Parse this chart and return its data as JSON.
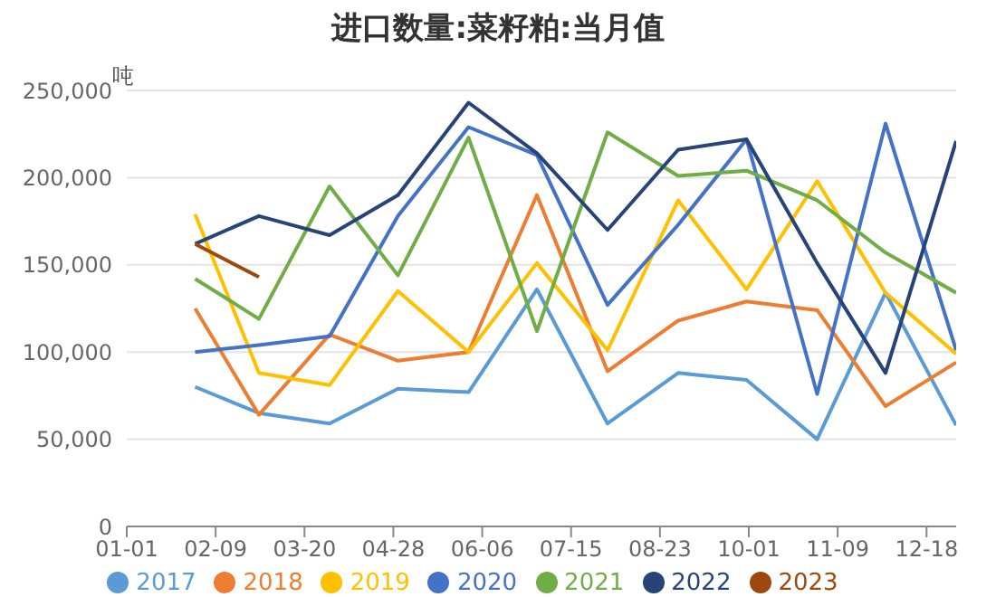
{
  "chart_data": {
    "type": "line",
    "title": "进口数量:菜籽粕:当月值",
    "ylabel": "吨",
    "x": [
      "--01-31",
      "--02-28",
      "--03-31",
      "--04-30",
      "--05-31",
      "--06-30",
      "--07-31",
      "--08-31",
      "--09-30",
      "--10-31",
      "--11-30",
      "--12-31"
    ],
    "xlim": [
      "--01-01",
      "--12-31"
    ],
    "xticks": [
      {
        "value": "--01-01",
        "label": "01-01"
      },
      {
        "value": "--02-09",
        "label": "02-09"
      },
      {
        "value": "--03-20",
        "label": "03-20"
      },
      {
        "value": "--04-28",
        "label": "04-28"
      },
      {
        "value": "--06-06",
        "label": "06-06"
      },
      {
        "value": "--07-15",
        "label": "07-15"
      },
      {
        "value": "--08-23",
        "label": "08-23"
      },
      {
        "value": "--10-01",
        "label": "10-01"
      },
      {
        "value": "--11-09",
        "label": "11-09"
      },
      {
        "value": "--12-18",
        "label": "12-18"
      }
    ],
    "ylim": [
      0,
      250000
    ],
    "yticks": [
      {
        "value": 0,
        "label": "0"
      },
      {
        "value": 50000,
        "label": "50,000"
      },
      {
        "value": 100000,
        "label": "100,000"
      },
      {
        "value": 150000,
        "label": "150,000"
      },
      {
        "value": 200000,
        "label": "200,000"
      },
      {
        "value": 250000,
        "label": "250,000"
      }
    ],
    "grid": "y",
    "legend": "bottom",
    "marker": "none",
    "line_style": "solid",
    "series": [
      {
        "name": "2017",
        "color": "#5b9bd5",
        "values": [
          80000,
          65000,
          59000,
          79000,
          77000,
          136000,
          59000,
          88000,
          84000,
          50000,
          134000,
          58000
        ]
      },
      {
        "name": "2018",
        "color": "#ed7d31",
        "values": [
          125000,
          64000,
          110000,
          95000,
          100000,
          190000,
          89000,
          118000,
          129000,
          124000,
          69000,
          94000
        ]
      },
      {
        "name": "2019",
        "color": "#ffc000",
        "values": [
          179000,
          88000,
          81000,
          135000,
          100000,
          151000,
          101000,
          187000,
          136000,
          198000,
          134000,
          99000
        ]
      },
      {
        "name": "2020",
        "color": "#4472c4",
        "values": [
          100000,
          104000,
          109000,
          178000,
          229000,
          213000,
          127000,
          173000,
          222000,
          76000,
          231000,
          101000
        ]
      },
      {
        "name": "2021",
        "color": "#70ad47",
        "values": [
          142000,
          119000,
          195000,
          144000,
          223000,
          112000,
          226000,
          201000,
          204000,
          187000,
          157000,
          134000
        ]
      },
      {
        "name": "2022",
        "color": "#264478",
        "values": [
          162000,
          178000,
          167000,
          190000,
          243000,
          214000,
          170000,
          216000,
          222000,
          151000,
          88000,
          221000
        ]
      },
      {
        "name": "2023",
        "color": "#9e480e",
        "values": [
          162000,
          143000,
          null,
          null,
          null,
          null,
          null,
          null,
          null,
          null,
          null,
          null
        ]
      }
    ]
  }
}
